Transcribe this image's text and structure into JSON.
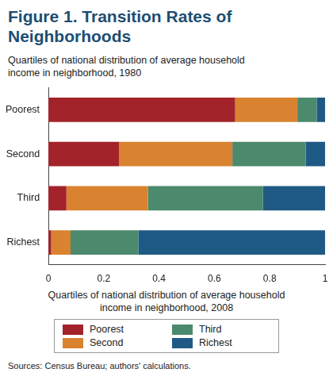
{
  "chart_data": {
    "type": "bar",
    "title": "Figure 1. Transition Rates of Neighborhoods",
    "ylabel": "Quartiles of national distribution of average household income in neighborhood, 1980",
    "xlabel": "Quartiles of national distribution of average household income in neighborhood, 2008",
    "annotations": [
      "Sources: Census Bureau; authors' calculations."
    ],
    "categories": [
      "Poorest",
      "Second",
      "Third",
      "Richest"
    ],
    "series": [
      {
        "name": "Poorest",
        "color": "#a3232b",
        "values": [
          0.675,
          0.255,
          0.065,
          0.01
        ]
      },
      {
        "name": "Second",
        "color": "#d98330",
        "values": [
          0.225,
          0.41,
          0.295,
          0.07
        ]
      },
      {
        "name": "Third",
        "color": "#4b8a6c",
        "values": [
          0.07,
          0.265,
          0.415,
          0.245
        ]
      },
      {
        "name": "Richest",
        "color": "#1f5a85",
        "values": [
          0.03,
          0.07,
          0.225,
          0.675
        ]
      }
    ],
    "orientation": "horizontal",
    "stacked": true,
    "grid": false,
    "legend": "bottom",
    "xlim": [
      0,
      1
    ],
    "xticks": [
      0,
      0.2,
      0.4,
      0.6,
      0.8,
      1
    ]
  }
}
